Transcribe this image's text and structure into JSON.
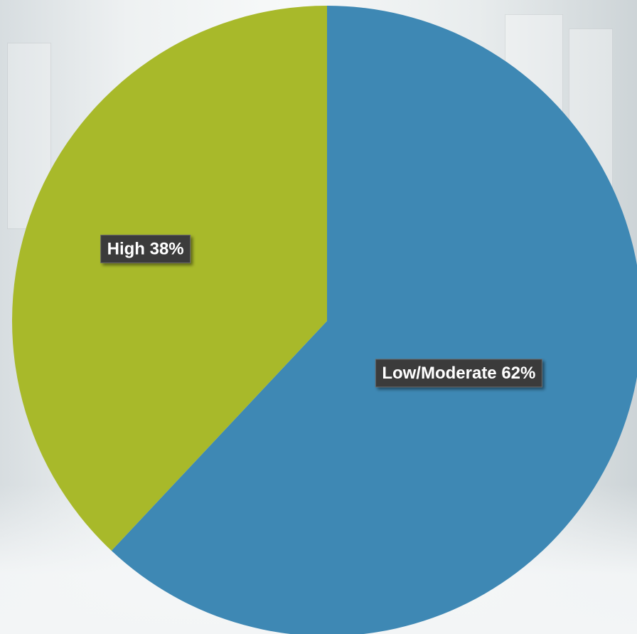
{
  "chart_data": {
    "type": "pie",
    "title": "",
    "slices": [
      {
        "label": "Low/Moderate",
        "value": 62,
        "display": "Low/Moderate 62%",
        "color": "#3e88b4"
      },
      {
        "label": "High",
        "value": 38,
        "display": "High 38%",
        "color": "#a8b92a"
      }
    ],
    "legend": "none",
    "label_style": "dark-box-white-bold"
  }
}
